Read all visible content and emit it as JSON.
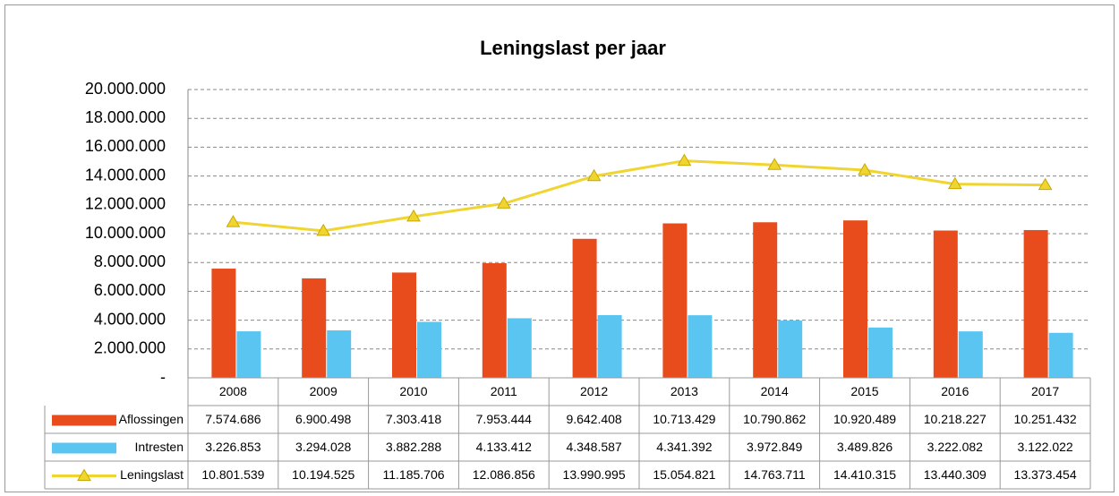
{
  "chart_data": {
    "type": "bar",
    "title": "Leningslast per jaar",
    "categories": [
      "2008",
      "2009",
      "2010",
      "2011",
      "2012",
      "2013",
      "2014",
      "2015",
      "2016",
      "2017"
    ],
    "ylim": [
      0,
      20000000
    ],
    "yticks": [
      {
        "value": 0,
        "label": "-"
      },
      {
        "value": 2000000,
        "label": "2.000.000"
      },
      {
        "value": 4000000,
        "label": "4.000.000"
      },
      {
        "value": 6000000,
        "label": "6.000.000"
      },
      {
        "value": 8000000,
        "label": "8.000.000"
      },
      {
        "value": 10000000,
        "label": "10.000.000"
      },
      {
        "value": 12000000,
        "label": "12.000.000"
      },
      {
        "value": 14000000,
        "label": "14.000.000"
      },
      {
        "value": 16000000,
        "label": "16.000.000"
      },
      {
        "value": 18000000,
        "label": "18.000.000"
      },
      {
        "value": 20000000,
        "label": "20.000.000"
      }
    ],
    "grid": true,
    "series": [
      {
        "name": "Aflossingen",
        "type": "bar",
        "color": "#e84c1c",
        "values": [
          7574686,
          6900498,
          7303418,
          7953444,
          9642408,
          10713429,
          10790862,
          10920489,
          10218227,
          10251432
        ],
        "value_labels": [
          "7.574.686",
          "6.900.498",
          "7.303.418",
          "7.953.444",
          "9.642.408",
          "10.713.429",
          "10.790.862",
          "10.920.489",
          "10.218.227",
          "10.251.432"
        ]
      },
      {
        "name": "Intresten",
        "type": "bar",
        "color": "#5bc5f2",
        "values": [
          3226853,
          3294028,
          3882288,
          4133412,
          4348587,
          4341392,
          3972849,
          3489826,
          3222082,
          3122022
        ],
        "value_labels": [
          "3.226.853",
          "3.294.028",
          "3.882.288",
          "4.133.412",
          "4.348.587",
          "4.341.392",
          "3.972.849",
          "3.489.826",
          "3.222.082",
          "3.122.022"
        ]
      },
      {
        "name": "Leningslast",
        "type": "line",
        "color": "#f0d531",
        "values": [
          10801539,
          10194525,
          11185706,
          12086856,
          13990995,
          15054821,
          14763711,
          14410315,
          13440309,
          13373454
        ],
        "value_labels": [
          "10.801.539",
          "10.194.525",
          "11.185.706",
          "12.086.856",
          "13.990.995",
          "15.054.821",
          "14.763.711",
          "14.410.315",
          "13.440.309",
          "13.373.454"
        ]
      }
    ]
  }
}
